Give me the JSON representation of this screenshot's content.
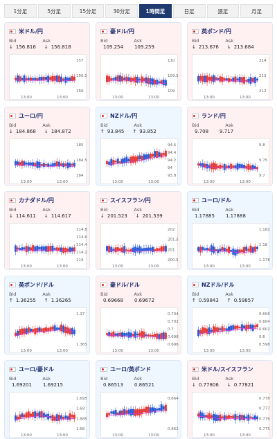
{
  "tabs": [
    "1分足",
    "5分足",
    "15分足",
    "30分足",
    "1時間足",
    "日足",
    "週足",
    "月足"
  ],
  "active_tab": "1時間足",
  "labels": {
    "bid": "Bid",
    "ask": "Ask"
  },
  "cards": [
    {
      "pair": "米ドル/円",
      "trend": "down",
      "bid": "156.816",
      "ask": "156.818",
      "bid_arrow": "↓",
      "ask_arrow": "↓",
      "yticks": [
        "157",
        "156.5",
        "156"
      ],
      "xticks": [
        "13:00",
        "13:00"
      ]
    },
    {
      "pair": "豪ドル/円",
      "trend": "down",
      "bid": "109.254",
      "ask": "109.259",
      "bid_arrow": "",
      "ask_arrow": "",
      "yticks": [
        "110",
        "109.5",
        "109"
      ],
      "xticks": [
        "13:00",
        "13:00"
      ]
    },
    {
      "pair": "英ポンド/円",
      "trend": "down",
      "bid": "213.676",
      "ask": "213.684",
      "bid_arrow": "↓",
      "ask_arrow": "↓",
      "yticks": [
        "214",
        "213",
        "212"
      ],
      "xticks": [
        "13:00",
        "13:00"
      ]
    },
    {
      "pair": "ユーロ/円",
      "trend": "down",
      "bid": "184.868",
      "ask": "184.872",
      "bid_arrow": "↓",
      "ask_arrow": "↓",
      "yticks": [
        "185",
        "184.5",
        "184"
      ],
      "xticks": [
        "13:00",
        "13:00"
      ]
    },
    {
      "pair": "NZドル/円",
      "trend": "up",
      "bid": "93.845",
      "ask": "93.852",
      "bid_arrow": "↑",
      "ask_arrow": "↑",
      "yticks": [
        "94.6",
        "94.4",
        "94.2",
        "94",
        "93.8"
      ],
      "xticks": [
        "13:00",
        "13:00"
      ]
    },
    {
      "pair": "ランド/円",
      "trend": "down",
      "bid": "9.708",
      "ask": "9.717",
      "bid_arrow": "",
      "ask_arrow": "",
      "yticks": [
        "9.8",
        "9.75",
        "9.7"
      ],
      "xticks": [
        "13:00",
        "13:00"
      ]
    },
    {
      "pair": "カナダドル/円",
      "trend": "down",
      "bid": "114.611",
      "ask": "114.617",
      "bid_arrow": "↓",
      "ask_arrow": "↓",
      "yticks": [
        "114.8",
        "114.6",
        "114.4",
        "114.2",
        "114"
      ],
      "xticks": [
        "13:00",
        "13:00"
      ]
    },
    {
      "pair": "スイスフラン/円",
      "trend": "down",
      "bid": "201.523",
      "ask": "201.539",
      "bid_arrow": "↓",
      "ask_arrow": "↓",
      "yticks": [
        "202",
        "201.5",
        "201",
        "200.5"
      ],
      "xticks": [
        "13:00",
        "13:00"
      ]
    },
    {
      "pair": "ユーロ/ドル",
      "trend": "up",
      "bid": "1.17885",
      "ask": "1.17888",
      "bid_arrow": "",
      "ask_arrow": "",
      "yticks": [
        "1.182",
        "1.18",
        "1.178"
      ],
      "xticks": [
        "13:00",
        "13:00"
      ]
    },
    {
      "pair": "英ポンド/ドル",
      "trend": "up",
      "bid": "1.36255",
      "ask": "1.36265",
      "bid_arrow": "↑",
      "ask_arrow": "↑",
      "yticks": [
        "1.37",
        "1.365"
      ],
      "xticks": [
        "13:00",
        "13:00"
      ]
    },
    {
      "pair": "豪ドル/ドル",
      "trend": "down",
      "bid": "0.69668",
      "ask": "0.69672",
      "bid_arrow": "",
      "ask_arrow": "",
      "yticks": [
        "0.704",
        "0.702",
        "0.7",
        "0.698",
        "0.696"
      ],
      "xticks": [
        "13:00",
        "13:00"
      ]
    },
    {
      "pair": "NZドル/ドル",
      "trend": "up",
      "bid": "0.59843",
      "ask": "0.59857",
      "bid_arrow": "↑",
      "ask_arrow": "↑",
      "yticks": [
        "0.606",
        "0.604",
        "0.602",
        "0.6",
        "0.598"
      ],
      "xticks": [
        "13:00",
        "13:00"
      ]
    },
    {
      "pair": "ユーロ/豪ドル",
      "trend": "up",
      "bid": "1.69201",
      "ask": "1.69215",
      "bid_arrow": "",
      "ask_arrow": "",
      "yticks": [
        "1.695",
        "1.69",
        "1.685",
        "1.68"
      ],
      "xticks": [
        "13:00",
        "13:00"
      ]
    },
    {
      "pair": "ユーロ/英ポンド",
      "trend": "up",
      "bid": "0.86513",
      "ask": "0.86521",
      "bid_arrow": "",
      "ask_arrow": "",
      "yticks": [
        "0.864",
        "0.862"
      ],
      "xticks": [
        "13:00",
        "13:00"
      ]
    },
    {
      "pair": "米ドル/スイスフラン",
      "trend": "down",
      "bid": "0.77806",
      "ask": "0.77821",
      "bid_arrow": "↓",
      "ask_arrow": "↓",
      "yticks": [
        "0.778",
        "0.777",
        "0.776",
        "0.775"
      ],
      "xticks": [
        "13:00",
        "13:00"
      ]
    }
  ],
  "colors": {
    "up_candle": "#2a5bd7",
    "down_candle": "#e53935",
    "ma": "#d63bd6",
    "down_bg": "#fff0f2",
    "up_bg": "#eef6ff",
    "active_tab": "#1e3a6e"
  }
}
